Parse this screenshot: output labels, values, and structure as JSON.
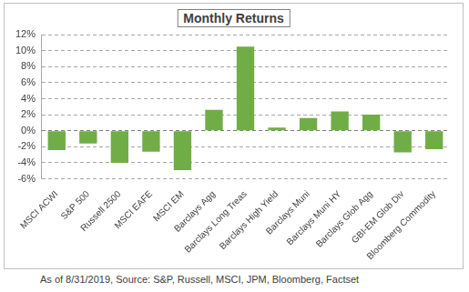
{
  "chart_data": {
    "type": "bar",
    "title": "Monthly Returns",
    "caption": "As of 8/31/2019, Source: S&P, Russell, MSCI, JPM, Bloomberg, Factset",
    "categories": [
      "MSCI ACWI",
      "S&P 500",
      "Russell 2500",
      "MSCI EAFE",
      "MSCI EM",
      "Barclays Agg",
      "Barclays Long Treas",
      "Barclays High Yield",
      "Barclays Muni",
      "Barclays Muni HY",
      "Barclays Glob Agg",
      "GBI-EM Glob Div",
      "Bloomberg Commodity"
    ],
    "values": [
      -2.4,
      -1.6,
      -4.0,
      -2.6,
      -4.9,
      2.6,
      10.5,
      0.4,
      1.6,
      2.4,
      2.0,
      -2.7,
      -2.3
    ],
    "color": "#70ad47",
    "ylim": [
      -6,
      12
    ],
    "yticks": [
      {
        "value": -6,
        "label": "-6%"
      },
      {
        "value": -4,
        "label": "-4%"
      },
      {
        "value": -2,
        "label": "-2%"
      },
      {
        "value": 0,
        "label": "0%"
      },
      {
        "value": 2,
        "label": "2%"
      },
      {
        "value": 4,
        "label": "4%"
      },
      {
        "value": 6,
        "label": "6%"
      },
      {
        "value": 8,
        "label": "8%"
      },
      {
        "value": 10,
        "label": "10%"
      },
      {
        "value": 12,
        "label": "12%"
      }
    ],
    "grid": true
  }
}
